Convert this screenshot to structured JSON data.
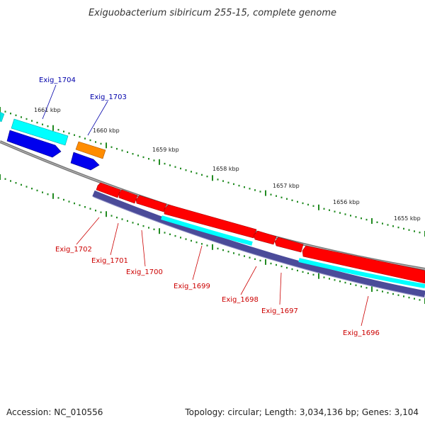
{
  "title": "Exiguobacterium sibiricum 255-15, complete genome",
  "footer": {
    "accession": "Accession: NC_010556",
    "topology": "Topology: circular; Length: 3,034,136 bp; Genes: 3,104"
  },
  "scale_labels": [
    "1661 kbp",
    "1660 kbp",
    "1659 kbp",
    "1658 kbp",
    "1657 kbp",
    "1656 kbp",
    "1655 kbp"
  ],
  "colors": {
    "forward_label": "#0000aa",
    "reverse_label": "#cc0000",
    "cds_red": "#ff0000",
    "cds_blue": "#0000ee",
    "cds_cyan": "#00ffff",
    "cds_orange": "#ff8c00",
    "gene_band": "#4b4b99",
    "backbone": "#888888",
    "tick": "#228b22"
  },
  "forward_genes": [
    {
      "name": "Exig_1704"
    },
    {
      "name": "Exig_1703"
    }
  ],
  "reverse_genes": [
    {
      "name": "Exig_1702"
    },
    {
      "name": "Exig_1701"
    },
    {
      "name": "Exig_1700"
    },
    {
      "name": "Exig_1699"
    },
    {
      "name": "Exig_1698"
    },
    {
      "name": "Exig_1697"
    },
    {
      "name": "Exig_1696"
    }
  ]
}
